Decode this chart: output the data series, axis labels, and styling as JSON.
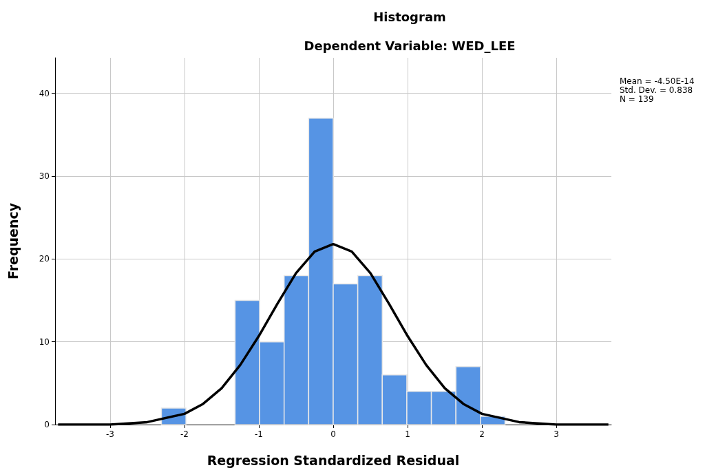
{
  "chart_data": {
    "type": "histogram",
    "title": "Histogram",
    "subtitle": "Dependent Variable: WED_LEE",
    "xlabel": "Regression Standardized Residual",
    "ylabel": "Frequency",
    "annotations": [
      "Mean = -4.50E-14",
      "Std. Dev. = 0.838",
      "N = 139"
    ],
    "bins": [
      -2.31,
      -1.98,
      -1.65,
      -1.32,
      -0.99,
      -0.66,
      -0.33,
      0,
      0.33,
      0.66,
      0.99,
      1.32,
      1.65,
      1.98,
      2.31
    ],
    "values": [
      2,
      0,
      0,
      15,
      10,
      18,
      37,
      17,
      18,
      6,
      4,
      4,
      7,
      1
    ],
    "color": "#5694e4",
    "series": [
      {
        "type": "line",
        "color": "#000000",
        "x": [
          -3.7,
          -3.0,
          -2.5,
          -2.0,
          -1.75,
          -1.5,
          -1.25,
          -1.0,
          -0.75,
          -0.5,
          -0.25,
          0,
          0.25,
          0.5,
          0.75,
          1.0,
          1.25,
          1.5,
          1.75,
          2.0,
          2.5,
          3.0,
          3.7
        ],
        "values": [
          0,
          0,
          0.3,
          1.3,
          2.5,
          4.4,
          7.2,
          10.7,
          14.6,
          18.3,
          20.9,
          21.8,
          20.9,
          18.3,
          14.6,
          10.7,
          7.2,
          4.4,
          2.5,
          1.3,
          0.3,
          0,
          0
        ]
      }
    ],
    "xlim": [
      -3.74,
      3.74
    ],
    "xticks": [
      -3,
      -2,
      -1,
      0,
      1,
      2,
      3
    ],
    "ylim": [
      0,
      44.3
    ],
    "yticks": [
      0,
      10,
      20,
      30,
      40
    ],
    "grid": true,
    "legend": false
  }
}
